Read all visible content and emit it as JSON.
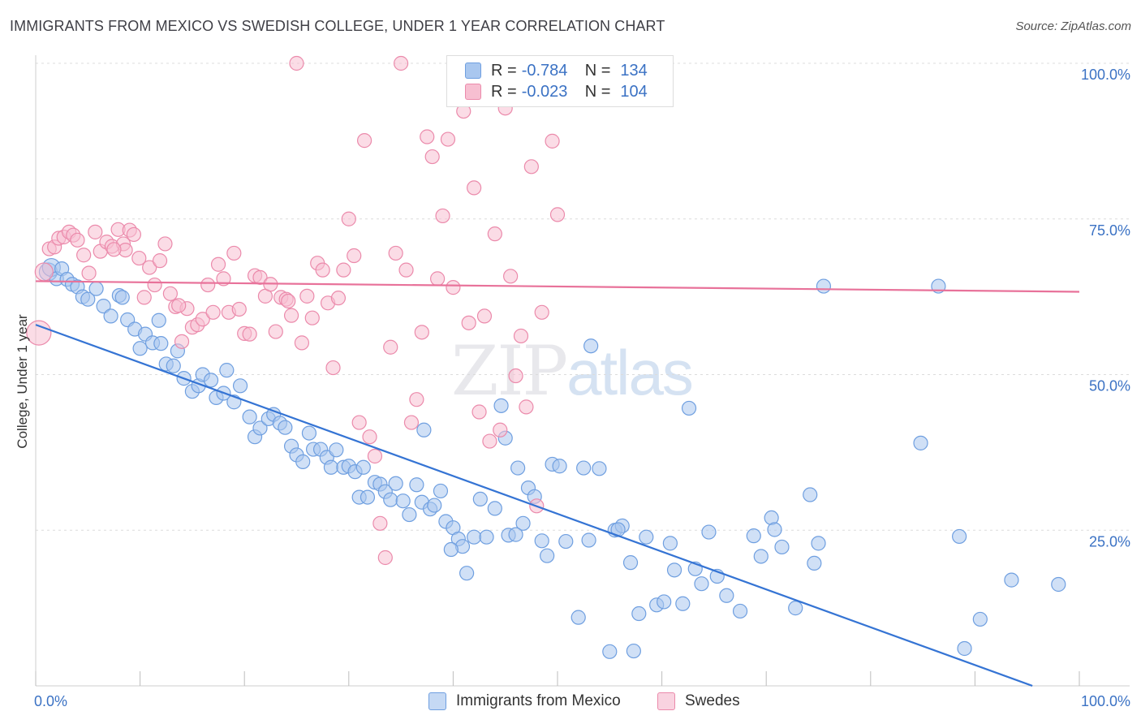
{
  "header": {
    "title": "IMMIGRANTS FROM MEXICO VS SWEDISH COLLEGE, UNDER 1 YEAR CORRELATION CHART",
    "source": "Source: ZipAtlas.com"
  },
  "watermark": {
    "zip": "ZIP",
    "atlas": "atlas"
  },
  "legend": {
    "rows": [
      {
        "r_label": "R =",
        "r_value": "-0.784",
        "n_label": "N =",
        "n_value": "134",
        "color": "#a9c7ef",
        "border": "#6f9fe0"
      },
      {
        "r_label": "R =",
        "r_value": "-0.023",
        "n_label": "N =",
        "n_value": "104",
        "color": "#f7bfd1",
        "border": "#eb8aab"
      }
    ]
  },
  "bottom_legend": [
    {
      "label": "Immigrants from Mexico",
      "color": "#a9c7ef",
      "border": "#6f9fe0"
    },
    {
      "label": "Swedes",
      "color": "#f7bfd1",
      "border": "#eb8aab"
    }
  ],
  "chart_data": {
    "type": "scatter",
    "title": "IMMIGRANTS FROM MEXICO VS SWEDISH COLLEGE, UNDER 1 YEAR CORRELATION CHART",
    "xlabel": "",
    "ylabel": "College, Under 1 year",
    "xlim": [
      0,
      100
    ],
    "ylim": [
      0,
      100
    ],
    "x_tick_labels": [
      "0.0%",
      "100.0%"
    ],
    "y_tick_labels": [
      "25.0%",
      "50.0%",
      "75.0%",
      "100.0%"
    ],
    "y_ticks": [
      25,
      50,
      75,
      100
    ],
    "grid": "horizontal dashed",
    "legend_position": "top-center",
    "series": [
      {
        "name": "Immigrants from Mexico",
        "color": "#6f9fe0",
        "fill": "#a9c7ef",
        "trend": {
          "x": [
            0,
            95.5
          ],
          "y": [
            58.0,
            0.0
          ],
          "color": "#3574d4"
        },
        "points": [
          [
            1.2,
            66.5
          ],
          [
            1.5,
            67.2
          ],
          [
            2.0,
            65.4
          ],
          [
            2.5,
            67.0
          ],
          [
            3.0,
            65.3
          ],
          [
            3.5,
            64.5
          ],
          [
            4.0,
            64.1
          ],
          [
            4.5,
            62.5
          ],
          [
            5.0,
            62.1
          ],
          [
            5.8,
            63.8
          ],
          [
            6.5,
            61.0
          ],
          [
            7.2,
            59.4
          ],
          [
            8.0,
            62.7
          ],
          [
            8.3,
            62.4
          ],
          [
            8.8,
            58.8
          ],
          [
            9.5,
            57.3
          ],
          [
            10.0,
            54.2
          ],
          [
            10.5,
            56.5
          ],
          [
            11.2,
            55.1
          ],
          [
            12.0,
            55.0
          ],
          [
            11.8,
            58.7
          ],
          [
            12.5,
            51.7
          ],
          [
            13.2,
            51.4
          ],
          [
            13.6,
            53.8
          ],
          [
            14.2,
            49.4
          ],
          [
            15.0,
            47.3
          ],
          [
            15.6,
            48.2
          ],
          [
            16.0,
            50.0
          ],
          [
            16.8,
            49.1
          ],
          [
            17.3,
            46.3
          ],
          [
            18.0,
            47.0
          ],
          [
            18.3,
            50.7
          ],
          [
            19.0,
            45.6
          ],
          [
            19.6,
            48.2
          ],
          [
            20.5,
            43.2
          ],
          [
            21.0,
            40.0
          ],
          [
            21.5,
            41.4
          ],
          [
            22.3,
            42.9
          ],
          [
            22.8,
            43.6
          ],
          [
            23.4,
            42.2
          ],
          [
            23.9,
            41.5
          ],
          [
            24.5,
            38.5
          ],
          [
            25.0,
            37.1
          ],
          [
            25.6,
            36.0
          ],
          [
            26.2,
            40.6
          ],
          [
            26.6,
            38.0
          ],
          [
            27.3,
            38.0
          ],
          [
            27.9,
            36.7
          ],
          [
            28.3,
            35.1
          ],
          [
            28.8,
            37.9
          ],
          [
            29.5,
            35.1
          ],
          [
            30.0,
            35.3
          ],
          [
            30.6,
            34.4
          ],
          [
            31.0,
            30.3
          ],
          [
            31.4,
            35.1
          ],
          [
            31.8,
            30.3
          ],
          [
            32.5,
            32.7
          ],
          [
            33.0,
            32.4
          ],
          [
            33.5,
            31.2
          ],
          [
            34.0,
            29.9
          ],
          [
            34.5,
            32.5
          ],
          [
            35.2,
            29.7
          ],
          [
            35.8,
            27.5
          ],
          [
            36.5,
            32.3
          ],
          [
            37.0,
            29.5
          ],
          [
            37.2,
            41.1
          ],
          [
            37.8,
            28.4
          ],
          [
            38.2,
            29.0
          ],
          [
            38.8,
            31.3
          ],
          [
            39.3,
            26.4
          ],
          [
            40.0,
            25.4
          ],
          [
            40.5,
            23.6
          ],
          [
            40.9,
            22.4
          ],
          [
            41.3,
            18.1
          ],
          [
            42.0,
            23.9
          ],
          [
            42.6,
            30.0
          ],
          [
            43.2,
            23.9
          ],
          [
            44.0,
            28.5
          ],
          [
            44.6,
            45.0
          ],
          [
            45.0,
            39.8
          ],
          [
            45.3,
            24.2
          ],
          [
            46.2,
            35.0
          ],
          [
            46.7,
            26.1
          ],
          [
            47.2,
            31.8
          ],
          [
            47.8,
            30.4
          ],
          [
            48.5,
            23.3
          ],
          [
            49.0,
            20.9
          ],
          [
            49.5,
            35.6
          ],
          [
            50.2,
            35.3
          ],
          [
            50.8,
            23.2
          ],
          [
            52.0,
            11.0
          ],
          [
            52.5,
            35.0
          ],
          [
            53.0,
            23.4
          ],
          [
            53.2,
            54.6
          ],
          [
            54.0,
            34.9
          ],
          [
            55.0,
            5.5
          ],
          [
            55.5,
            25.0
          ],
          [
            56.2,
            25.7
          ],
          [
            57.0,
            19.8
          ],
          [
            57.3,
            5.6
          ],
          [
            57.8,
            11.6
          ],
          [
            58.5,
            23.9
          ],
          [
            59.5,
            13.0
          ],
          [
            60.2,
            13.5
          ],
          [
            60.8,
            22.9
          ],
          [
            61.2,
            18.6
          ],
          [
            62.0,
            13.2
          ],
          [
            62.6,
            44.6
          ],
          [
            63.2,
            18.8
          ],
          [
            63.8,
            16.4
          ],
          [
            64.5,
            24.7
          ],
          [
            65.3,
            17.6
          ],
          [
            66.2,
            14.5
          ],
          [
            67.5,
            12.0
          ],
          [
            68.8,
            24.1
          ],
          [
            69.5,
            20.8
          ],
          [
            70.5,
            27.0
          ],
          [
            70.8,
            25.1
          ],
          [
            71.5,
            22.3
          ],
          [
            72.8,
            12.5
          ],
          [
            74.2,
            30.7
          ],
          [
            74.6,
            19.7
          ],
          [
            75.0,
            22.9
          ],
          [
            84.8,
            39.0
          ],
          [
            86.5,
            64.2
          ],
          [
            88.5,
            24.0
          ],
          [
            89.0,
            6.0
          ],
          [
            90.5,
            10.7
          ],
          [
            93.5,
            17.0
          ],
          [
            98.0,
            16.3
          ],
          [
            75.5,
            64.2
          ],
          [
            55.8,
            25.1
          ],
          [
            46.0,
            24.3
          ],
          [
            39.8,
            21.9
          ]
        ]
      },
      {
        "name": "Swedes",
        "color": "#eb8aab",
        "fill": "#f7bfd1",
        "trend": {
          "x": [
            0,
            100
          ],
          "y": [
            65.0,
            63.3
          ],
          "color": "#e8729a"
        },
        "points": [
          [
            0.3,
            56.7
          ],
          [
            0.8,
            66.5
          ],
          [
            1.3,
            70.2
          ],
          [
            1.8,
            70.5
          ],
          [
            2.2,
            71.9
          ],
          [
            2.7,
            72.1
          ],
          [
            3.2,
            72.9
          ],
          [
            3.6,
            72.4
          ],
          [
            4.0,
            71.6
          ],
          [
            4.6,
            69.2
          ],
          [
            5.1,
            66.3
          ],
          [
            5.7,
            72.9
          ],
          [
            6.2,
            69.8
          ],
          [
            6.8,
            71.3
          ],
          [
            7.3,
            70.6
          ],
          [
            7.9,
            73.3
          ],
          [
            8.4,
            71.0
          ],
          [
            9.0,
            73.2
          ],
          [
            9.4,
            72.5
          ],
          [
            9.9,
            68.7
          ],
          [
            10.4,
            62.4
          ],
          [
            10.9,
            67.2
          ],
          [
            11.4,
            64.4
          ],
          [
            11.9,
            68.3
          ],
          [
            12.4,
            71.0
          ],
          [
            12.9,
            63.0
          ],
          [
            13.4,
            60.9
          ],
          [
            14.0,
            55.3
          ],
          [
            14.5,
            60.6
          ],
          [
            15.0,
            57.6
          ],
          [
            15.5,
            58.0
          ],
          [
            16.0,
            58.9
          ],
          [
            16.5,
            64.4
          ],
          [
            17.0,
            60.0
          ],
          [
            17.5,
            67.7
          ],
          [
            18.0,
            65.4
          ],
          [
            18.5,
            60.0
          ],
          [
            19.0,
            69.5
          ],
          [
            19.5,
            60.5
          ],
          [
            20.0,
            56.6
          ],
          [
            20.5,
            56.5
          ],
          [
            21.0,
            65.9
          ],
          [
            21.5,
            65.6
          ],
          [
            22.0,
            62.6
          ],
          [
            22.5,
            64.5
          ],
          [
            23.0,
            56.9
          ],
          [
            23.5,
            62.4
          ],
          [
            24.0,
            62.1
          ],
          [
            24.5,
            59.5
          ],
          [
            25.0,
            100.0
          ],
          [
            25.5,
            55.1
          ],
          [
            26.0,
            62.6
          ],
          [
            26.5,
            59.1
          ],
          [
            27.0,
            67.9
          ],
          [
            27.5,
            66.8
          ],
          [
            28.0,
            61.5
          ],
          [
            28.5,
            51.1
          ],
          [
            29.0,
            62.3
          ],
          [
            29.5,
            66.8
          ],
          [
            30.0,
            75.0
          ],
          [
            30.5,
            69.1
          ],
          [
            31.0,
            42.3
          ],
          [
            31.5,
            87.6
          ],
          [
            32.0,
            40.0
          ],
          [
            32.5,
            36.9
          ],
          [
            33.0,
            26.1
          ],
          [
            33.5,
            20.6
          ],
          [
            34.0,
            54.4
          ],
          [
            34.5,
            69.5
          ],
          [
            35.0,
            100.0
          ],
          [
            35.5,
            66.8
          ],
          [
            36.0,
            42.3
          ],
          [
            36.5,
            46.0
          ],
          [
            37.0,
            56.8
          ],
          [
            37.5,
            88.2
          ],
          [
            38.0,
            85.0
          ],
          [
            38.5,
            65.4
          ],
          [
            39.0,
            75.5
          ],
          [
            39.5,
            87.8
          ],
          [
            40.0,
            64.0
          ],
          [
            40.5,
            100.0
          ],
          [
            41.0,
            92.3
          ],
          [
            41.5,
            58.3
          ],
          [
            42.0,
            80.0
          ],
          [
            42.5,
            44.0
          ],
          [
            43.0,
            59.4
          ],
          [
            43.5,
            39.3
          ],
          [
            44.0,
            72.6
          ],
          [
            44.5,
            41.1
          ],
          [
            45.0,
            92.8
          ],
          [
            45.5,
            65.8
          ],
          [
            46.0,
            49.8
          ],
          [
            46.5,
            56.2
          ],
          [
            47.0,
            44.8
          ],
          [
            47.5,
            83.4
          ],
          [
            48.0,
            28.9
          ],
          [
            48.5,
            60.0
          ],
          [
            49.0,
            100.0
          ],
          [
            49.5,
            87.5
          ],
          [
            50.0,
            75.7
          ],
          [
            24.2,
            61.8
          ],
          [
            8.6,
            70.0
          ],
          [
            13.7,
            61.1
          ],
          [
            7.5,
            70.1
          ]
        ]
      }
    ]
  }
}
